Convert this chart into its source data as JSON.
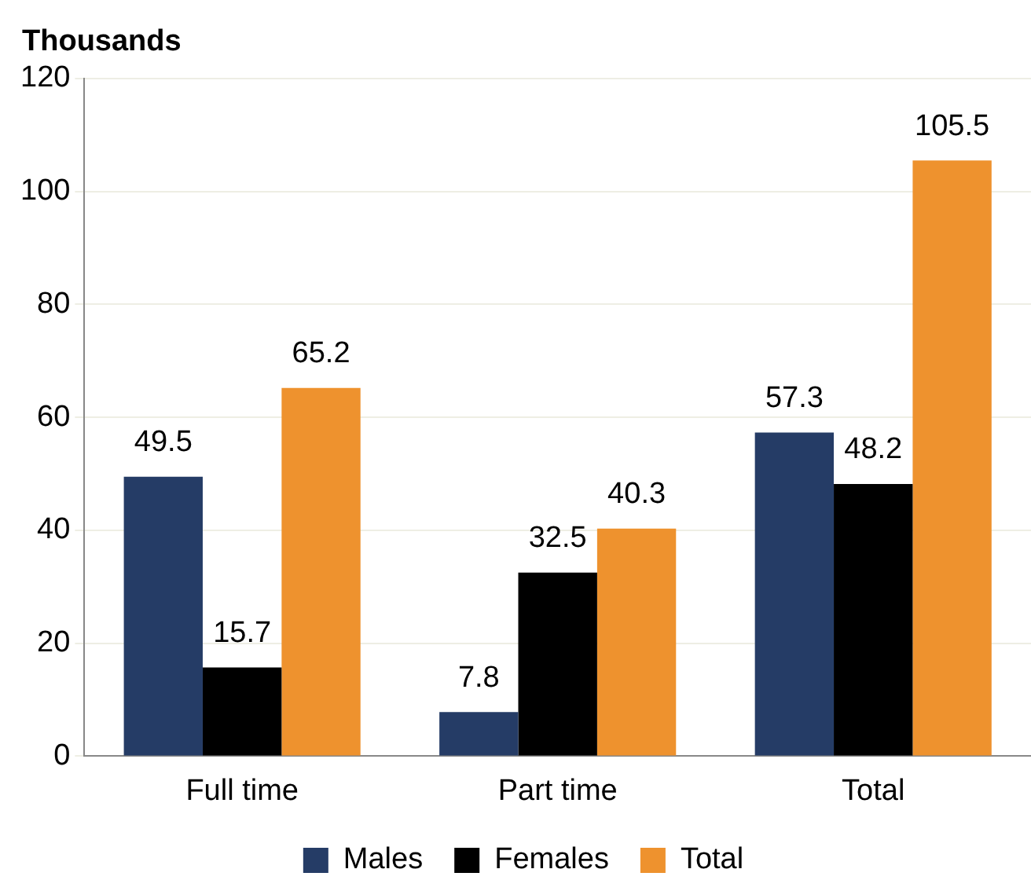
{
  "chart_data": {
    "type": "bar",
    "ylabel": "Thousands",
    "categories": [
      "Full time",
      "Part time",
      "Total"
    ],
    "series": [
      {
        "name": "Males",
        "color": "#253c66",
        "values": [
          49.5,
          7.8,
          57.3
        ]
      },
      {
        "name": "Females",
        "color": "#000000",
        "values": [
          15.7,
          32.5,
          48.2
        ]
      },
      {
        "name": "Total",
        "color": "#ee922e",
        "values": [
          65.2,
          40.3,
          105.5
        ]
      }
    ],
    "ylim": [
      0,
      120
    ],
    "yticks": [
      0,
      20,
      40,
      60,
      80,
      100,
      120
    ],
    "grid": "y",
    "legend": "bottom",
    "data_labels": true
  }
}
